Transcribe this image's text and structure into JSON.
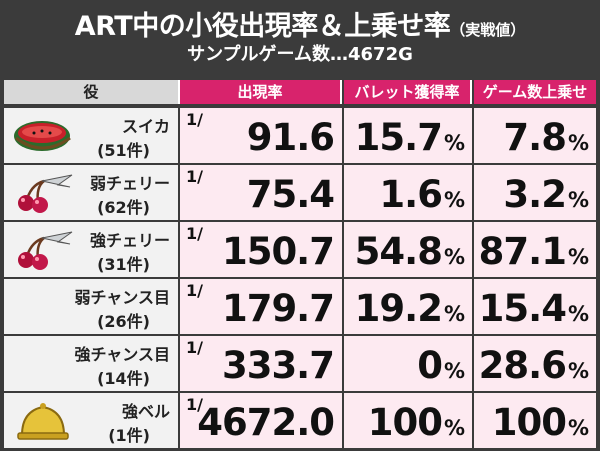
{
  "title": {
    "main": "ART中の小役出現率＆上乗せ率",
    "note": "（実戦値）",
    "subtitle": "サンプルゲーム数…4672G"
  },
  "headers": {
    "role": "役",
    "rate": "出現率",
    "bullet": "バレット獲得率",
    "game": "ゲーム数上乗せ"
  },
  "rows": [
    {
      "name": "スイカ",
      "count": "(51件)",
      "icon": "watermelon-icon",
      "frac": "1/",
      "rate": "91.6",
      "bullet": "15.7",
      "game": "7.8",
      "pct": "%"
    },
    {
      "name": "弱チェリー",
      "count": "(62件)",
      "icon": "cherry-icon",
      "frac": "1/",
      "rate": "75.4",
      "bullet": "1.6",
      "game": "3.2",
      "pct": "%"
    },
    {
      "name": "強チェリー",
      "count": "(31件)",
      "icon": "cherry-icon",
      "frac": "1/",
      "rate": "150.7",
      "bullet": "54.8",
      "game": "87.1",
      "pct": "%"
    },
    {
      "name": "弱チャンス目",
      "count": "(26件)",
      "icon": "",
      "frac": "1/",
      "rate": "179.7",
      "bullet": "19.2",
      "game": "15.4",
      "pct": "%"
    },
    {
      "name": "強チャンス目",
      "count": "(14件)",
      "icon": "",
      "frac": "1/",
      "rate": "333.7",
      "bullet": "0",
      "game": "28.6",
      "pct": "%"
    },
    {
      "name": "強ベル",
      "count": "(1件)",
      "icon": "bell-icon",
      "frac": "1/",
      "rate": "4672.0",
      "bullet": "100",
      "game": "100",
      "pct": "%"
    }
  ]
}
